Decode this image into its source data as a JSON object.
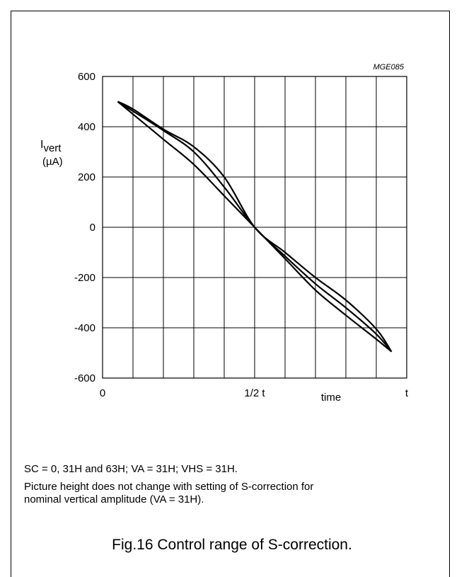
{
  "chart_data": {
    "type": "line",
    "code": "MGE085",
    "ylabel_main": "I",
    "ylabel_sub": "vert",
    "ylabel_unit": "(µA)",
    "yticks": [
      "600",
      "400",
      "200",
      "0",
      "-200",
      "-400",
      "-600"
    ],
    "ytick_values": [
      600,
      400,
      200,
      0,
      -200,
      -400,
      -600
    ],
    "xtick_labels": {
      "start": "0",
      "mid": "1/2 t",
      "end": "t"
    },
    "xlabel": "time",
    "xlim": [
      0,
      1
    ],
    "ylim": [
      -600,
      600
    ],
    "grid": true,
    "series": [
      {
        "x": [
          0.05,
          0.1,
          0.2,
          0.3,
          0.4,
          0.5,
          0.6,
          0.7,
          0.8,
          0.9,
          0.95
        ],
        "y": [
          500,
          450,
          350,
          250,
          125,
          0,
          -125,
          -250,
          -350,
          -445,
          -495
        ]
      },
      {
        "x": [
          0.05,
          0.1,
          0.2,
          0.3,
          0.4,
          0.5,
          0.6,
          0.7,
          0.8,
          0.9,
          0.95
        ],
        "y": [
          500,
          462,
          385,
          300,
          160,
          0,
          -115,
          -225,
          -320,
          -425,
          -495
        ]
      },
      {
        "x": [
          0.05,
          0.1,
          0.2,
          0.3,
          0.4,
          0.5,
          0.6,
          0.7,
          0.8,
          0.9,
          0.95
        ],
        "y": [
          500,
          470,
          390,
          320,
          200,
          0,
          -100,
          -200,
          -290,
          -405,
          -495
        ]
      }
    ]
  },
  "notes": {
    "line1": "SC = 0, 31H and 63H; VA = 31H; VHS = 31H.",
    "line2": "Picture height does not change with setting of S-correction for",
    "line3": "nominal vertical amplitude (VA = 31H)."
  },
  "caption": "Fig.16  Control range of S-correction."
}
